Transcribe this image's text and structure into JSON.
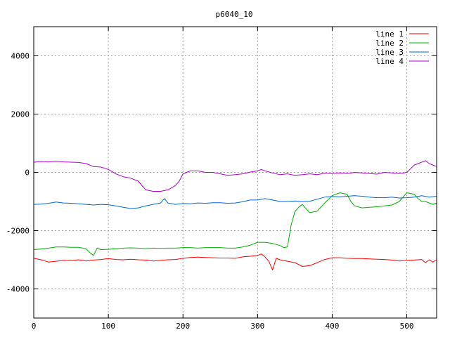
{
  "chart_data": {
    "type": "line",
    "title": "p6040_10",
    "xlabel": "",
    "ylabel": "",
    "xlim": [
      0,
      540
    ],
    "ylim": [
      -5000,
      5000
    ],
    "x_ticks": [
      0,
      100,
      200,
      300,
      400,
      500
    ],
    "y_ticks": [
      -4000,
      -2000,
      0,
      2000,
      4000
    ],
    "grid": true,
    "legend_position": "top-right",
    "series": [
      {
        "name": "line 1",
        "color": "#ff0000",
        "points": [
          [
            0,
            -2950
          ],
          [
            10,
            -3000
          ],
          [
            20,
            -3080
          ],
          [
            30,
            -3050
          ],
          [
            40,
            -3020
          ],
          [
            50,
            -3030
          ],
          [
            60,
            -3000
          ],
          [
            70,
            -3040
          ],
          [
            80,
            -3010
          ],
          [
            90,
            -2990
          ],
          [
            100,
            -2960
          ],
          [
            110,
            -2990
          ],
          [
            120,
            -3000
          ],
          [
            130,
            -2980
          ],
          [
            140,
            -3000
          ],
          [
            150,
            -3010
          ],
          [
            160,
            -3040
          ],
          [
            170,
            -3020
          ],
          [
            180,
            -3000
          ],
          [
            190,
            -2990
          ],
          [
            200,
            -2950
          ],
          [
            210,
            -2920
          ],
          [
            220,
            -2910
          ],
          [
            230,
            -2920
          ],
          [
            240,
            -2930
          ],
          [
            250,
            -2940
          ],
          [
            260,
            -2940
          ],
          [
            270,
            -2950
          ],
          [
            280,
            -2900
          ],
          [
            290,
            -2880
          ],
          [
            300,
            -2850
          ],
          [
            305,
            -2800
          ],
          [
            310,
            -2900
          ],
          [
            315,
            -3050
          ],
          [
            320,
            -3350
          ],
          [
            325,
            -2950
          ],
          [
            330,
            -3000
          ],
          [
            340,
            -3050
          ],
          [
            350,
            -3100
          ],
          [
            360,
            -3230
          ],
          [
            370,
            -3200
          ],
          [
            380,
            -3100
          ],
          [
            390,
            -2990
          ],
          [
            400,
            -2930
          ],
          [
            410,
            -2930
          ],
          [
            420,
            -2950
          ],
          [
            430,
            -2960
          ],
          [
            440,
            -2960
          ],
          [
            450,
            -2970
          ],
          [
            460,
            -2980
          ],
          [
            470,
            -2990
          ],
          [
            480,
            -3010
          ],
          [
            490,
            -3040
          ],
          [
            500,
            -3020
          ],
          [
            510,
            -3010
          ],
          [
            520,
            -2990
          ],
          [
            525,
            -3100
          ],
          [
            530,
            -3000
          ],
          [
            535,
            -3080
          ],
          [
            540,
            -3000
          ]
        ]
      },
      {
        "name": "line 2",
        "color": "#00b000",
        "points": [
          [
            0,
            -2650
          ],
          [
            10,
            -2630
          ],
          [
            20,
            -2600
          ],
          [
            30,
            -2560
          ],
          [
            40,
            -2560
          ],
          [
            50,
            -2570
          ],
          [
            60,
            -2570
          ],
          [
            70,
            -2620
          ],
          [
            75,
            -2750
          ],
          [
            80,
            -2850
          ],
          [
            85,
            -2600
          ],
          [
            90,
            -2650
          ],
          [
            100,
            -2640
          ],
          [
            110,
            -2620
          ],
          [
            120,
            -2600
          ],
          [
            130,
            -2590
          ],
          [
            140,
            -2600
          ],
          [
            150,
            -2620
          ],
          [
            160,
            -2600
          ],
          [
            170,
            -2610
          ],
          [
            180,
            -2600
          ],
          [
            190,
            -2600
          ],
          [
            200,
            -2580
          ],
          [
            210,
            -2580
          ],
          [
            220,
            -2600
          ],
          [
            230,
            -2580
          ],
          [
            240,
            -2580
          ],
          [
            250,
            -2580
          ],
          [
            260,
            -2600
          ],
          [
            270,
            -2600
          ],
          [
            280,
            -2560
          ],
          [
            290,
            -2500
          ],
          [
            300,
            -2400
          ],
          [
            310,
            -2400
          ],
          [
            320,
            -2440
          ],
          [
            330,
            -2510
          ],
          [
            335,
            -2580
          ],
          [
            340,
            -2560
          ],
          [
            345,
            -1800
          ],
          [
            350,
            -1350
          ],
          [
            355,
            -1200
          ],
          [
            360,
            -1100
          ],
          [
            365,
            -1250
          ],
          [
            370,
            -1380
          ],
          [
            380,
            -1330
          ],
          [
            390,
            -1050
          ],
          [
            400,
            -800
          ],
          [
            410,
            -700
          ],
          [
            420,
            -750
          ],
          [
            425,
            -1000
          ],
          [
            430,
            -1150
          ],
          [
            440,
            -1220
          ],
          [
            450,
            -1200
          ],
          [
            460,
            -1180
          ],
          [
            470,
            -1150
          ],
          [
            480,
            -1120
          ],
          [
            490,
            -1000
          ],
          [
            500,
            -700
          ],
          [
            510,
            -750
          ],
          [
            515,
            -900
          ],
          [
            520,
            -1000
          ],
          [
            525,
            -1000
          ],
          [
            530,
            -1050
          ],
          [
            535,
            -1100
          ],
          [
            540,
            -1050
          ]
        ]
      },
      {
        "name": "line 3",
        "color": "#0066dd",
        "points": [
          [
            0,
            -1100
          ],
          [
            10,
            -1090
          ],
          [
            20,
            -1060
          ],
          [
            30,
            -1020
          ],
          [
            40,
            -1050
          ],
          [
            50,
            -1060
          ],
          [
            60,
            -1080
          ],
          [
            70,
            -1100
          ],
          [
            80,
            -1120
          ],
          [
            90,
            -1100
          ],
          [
            100,
            -1110
          ],
          [
            110,
            -1150
          ],
          [
            120,
            -1200
          ],
          [
            130,
            -1240
          ],
          [
            140,
            -1220
          ],
          [
            150,
            -1150
          ],
          [
            160,
            -1100
          ],
          [
            170,
            -1050
          ],
          [
            175,
            -900
          ],
          [
            180,
            -1050
          ],
          [
            190,
            -1100
          ],
          [
            200,
            -1070
          ],
          [
            210,
            -1080
          ],
          [
            220,
            -1050
          ],
          [
            230,
            -1060
          ],
          [
            240,
            -1040
          ],
          [
            250,
            -1040
          ],
          [
            260,
            -1060
          ],
          [
            270,
            -1050
          ],
          [
            280,
            -1010
          ],
          [
            290,
            -950
          ],
          [
            300,
            -950
          ],
          [
            310,
            -900
          ],
          [
            320,
            -950
          ],
          [
            330,
            -1000
          ],
          [
            340,
            -1000
          ],
          [
            350,
            -980
          ],
          [
            360,
            -1000
          ],
          [
            370,
            -990
          ],
          [
            380,
            -920
          ],
          [
            390,
            -850
          ],
          [
            400,
            -830
          ],
          [
            410,
            -840
          ],
          [
            420,
            -820
          ],
          [
            430,
            -800
          ],
          [
            440,
            -820
          ],
          [
            450,
            -850
          ],
          [
            460,
            -870
          ],
          [
            470,
            -870
          ],
          [
            480,
            -850
          ],
          [
            490,
            -880
          ],
          [
            500,
            -870
          ],
          [
            510,
            -850
          ],
          [
            520,
            -800
          ],
          [
            530,
            -850
          ],
          [
            540,
            -820
          ]
        ]
      },
      {
        "name": "line 4",
        "color": "#b000d0",
        "points": [
          [
            0,
            350
          ],
          [
            10,
            370
          ],
          [
            20,
            360
          ],
          [
            30,
            380
          ],
          [
            40,
            360
          ],
          [
            50,
            350
          ],
          [
            60,
            340
          ],
          [
            70,
            300
          ],
          [
            80,
            200
          ],
          [
            90,
            180
          ],
          [
            100,
            100
          ],
          [
            110,
            -50
          ],
          [
            120,
            -150
          ],
          [
            130,
            -200
          ],
          [
            140,
            -300
          ],
          [
            150,
            -600
          ],
          [
            160,
            -650
          ],
          [
            170,
            -650
          ],
          [
            180,
            -600
          ],
          [
            190,
            -450
          ],
          [
            195,
            -300
          ],
          [
            200,
            -50
          ],
          [
            210,
            50
          ],
          [
            220,
            50
          ],
          [
            230,
            0
          ],
          [
            240,
            0
          ],
          [
            250,
            -50
          ],
          [
            260,
            -100
          ],
          [
            270,
            -80
          ],
          [
            280,
            -50
          ],
          [
            290,
            10
          ],
          [
            300,
            50
          ],
          [
            305,
            100
          ],
          [
            310,
            50
          ],
          [
            320,
            -20
          ],
          [
            330,
            -80
          ],
          [
            340,
            -50
          ],
          [
            350,
            -100
          ],
          [
            360,
            -80
          ],
          [
            370,
            -50
          ],
          [
            380,
            -80
          ],
          [
            390,
            -30
          ],
          [
            400,
            -40
          ],
          [
            410,
            -20
          ],
          [
            420,
            -40
          ],
          [
            430,
            0
          ],
          [
            440,
            -20
          ],
          [
            450,
            -40
          ],
          [
            460,
            -60
          ],
          [
            470,
            0
          ],
          [
            480,
            -20
          ],
          [
            490,
            -40
          ],
          [
            500,
            0
          ],
          [
            510,
            250
          ],
          [
            520,
            350
          ],
          [
            525,
            400
          ],
          [
            530,
            300
          ],
          [
            535,
            250
          ],
          [
            540,
            200
          ]
        ]
      }
    ]
  }
}
